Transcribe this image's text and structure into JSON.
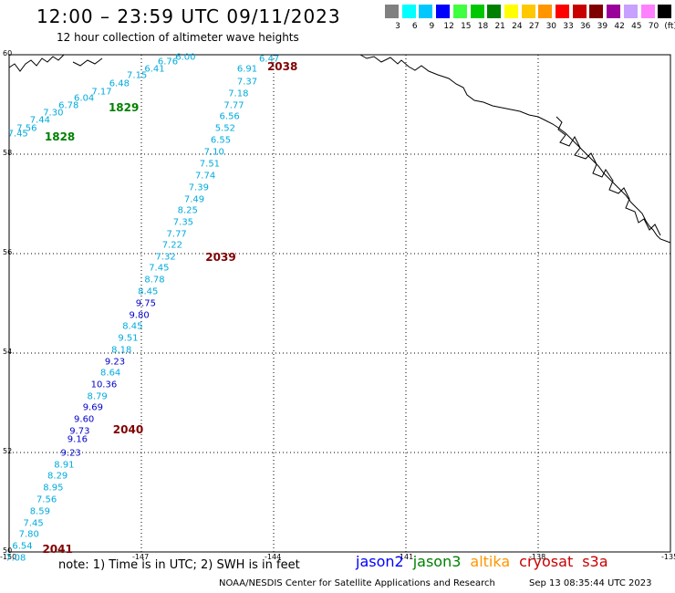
{
  "title": "12:00 – 23:59 UTC 09/11/2023",
  "subtitle": "12 hour collection of altimeter wave heights",
  "colorbar": {
    "colors": [
      "#808080",
      "#00ffff",
      "#00c8ff",
      "#0000ff",
      "#40ff40",
      "#00c800",
      "#008000",
      "#ffff00",
      "#ffc800",
      "#ff9600",
      "#ff0000",
      "#c80000",
      "#800000",
      "#9a009a",
      "#c8a0ff",
      "#ff80ff",
      "#000000"
    ],
    "labels": [
      "3",
      "6",
      "9",
      "12",
      "15",
      "18",
      "21",
      "24",
      "27",
      "30",
      "33",
      "36",
      "39",
      "42",
      "45",
      "70",
      "(ft)"
    ]
  },
  "map": {
    "lat_labels": [
      "60",
      "58",
      "56",
      "54",
      "52",
      "50"
    ],
    "lon_labels": [
      "-150",
      "-147",
      "-144",
      "-141",
      "-138",
      "-135"
    ],
    "lat_range": [
      50,
      60
    ],
    "lon_range": [
      -150,
      -135
    ]
  },
  "track_east": {
    "color": "#00aadd",
    "values": [
      {
        "lat": 59.91,
        "lon": -144.1,
        "v": "6.47"
      },
      {
        "lat": 59.7,
        "lon": -144.6,
        "v": "6.91"
      },
      {
        "lat": 59.45,
        "lon": -144.6,
        "v": "7.37"
      },
      {
        "lat": 59.22,
        "lon": -144.8,
        "v": "7.18"
      },
      {
        "lat": 58.98,
        "lon": -144.9,
        "v": "7.77"
      },
      {
        "lat": 58.75,
        "lon": -145.0,
        "v": "6.56"
      },
      {
        "lat": 58.52,
        "lon": -145.1,
        "v": "5.52"
      },
      {
        "lat": 58.28,
        "lon": -145.2,
        "v": "6.55"
      },
      {
        "lat": 58.04,
        "lon": -145.35,
        "v": "7.10"
      },
      {
        "lat": 57.8,
        "lon": -145.45,
        "v": "7.51"
      },
      {
        "lat": 57.56,
        "lon": -145.55,
        "v": "7.74"
      },
      {
        "lat": 57.33,
        "lon": -145.7,
        "v": "7.39"
      },
      {
        "lat": 57.09,
        "lon": -145.8,
        "v": "7.49"
      },
      {
        "lat": 56.86,
        "lon": -145.95,
        "v": "8.25"
      },
      {
        "lat": 56.62,
        "lon": -146.05,
        "v": "7.35"
      },
      {
        "lat": 56.39,
        "lon": -146.2,
        "v": "7.77"
      },
      {
        "lat": 56.16,
        "lon": -146.3,
        "v": "7.22"
      },
      {
        "lat": 55.93,
        "lon": -146.45,
        "v": "7.32"
      },
      {
        "lat": 55.7,
        "lon": -146.6,
        "v": "7.45"
      },
      {
        "lat": 55.47,
        "lon": -146.7,
        "v": "8.78"
      },
      {
        "lat": 55.23,
        "lon": -146.85,
        "v": "8.45"
      },
      {
        "lat": 55.0,
        "lon": -146.9,
        "v": "9.75",
        "c": "#0000cc"
      },
      {
        "lat": 54.76,
        "lon": -147.05,
        "v": "9.80",
        "c": "#0000cc"
      },
      {
        "lat": 54.53,
        "lon": -147.2,
        "v": "8.45"
      },
      {
        "lat": 54.29,
        "lon": -147.3,
        "v": "9.51"
      },
      {
        "lat": 54.06,
        "lon": -147.45,
        "v": "8.18"
      },
      {
        "lat": 53.82,
        "lon": -147.6,
        "v": "9.23",
        "c": "#0000cc"
      },
      {
        "lat": 53.59,
        "lon": -147.7,
        "v": "8.64"
      },
      {
        "lat": 53.36,
        "lon": -147.85,
        "v": "10.36",
        "c": "#0000cc"
      },
      {
        "lat": 53.12,
        "lon": -148.0,
        "v": "8.79"
      },
      {
        "lat": 52.89,
        "lon": -148.1,
        "v": "9.69",
        "c": "#0000cc"
      },
      {
        "lat": 52.66,
        "lon": -148.3,
        "v": "9.60",
        "c": "#0000cc"
      },
      {
        "lat": 52.42,
        "lon": -148.4,
        "v": "9.73",
        "c": "#0000cc"
      },
      {
        "lat": 52.26,
        "lon": -148.45,
        "v": "9.16",
        "c": "#0000cc"
      },
      {
        "lat": 51.99,
        "lon": -148.6,
        "v": "9.23",
        "c": "#0000cc"
      },
      {
        "lat": 51.75,
        "lon": -148.75,
        "v": "8.91"
      },
      {
        "lat": 51.52,
        "lon": -148.9,
        "v": "8.29"
      },
      {
        "lat": 51.28,
        "lon": -149.0,
        "v": "8.95"
      },
      {
        "lat": 51.04,
        "lon": -149.15,
        "v": "7.56"
      },
      {
        "lat": 50.81,
        "lon": -149.3,
        "v": "8.59"
      },
      {
        "lat": 50.57,
        "lon": -149.45,
        "v": "7.45"
      },
      {
        "lat": 50.34,
        "lon": -149.55,
        "v": "7.80"
      },
      {
        "lat": 50.11,
        "lon": -149.7,
        "v": "6.54"
      },
      {
        "lat": 49.88,
        "lon": -149.85,
        "v": "7.08"
      }
    ]
  },
  "track_west": {
    "color": "#00aadd",
    "values": [
      {
        "lat": 59.95,
        "lon": -146.0,
        "v": "6.00"
      },
      {
        "lat": 59.85,
        "lon": -146.4,
        "v": "6.76"
      },
      {
        "lat": 59.7,
        "lon": -146.7,
        "v": "6.41"
      },
      {
        "lat": 59.58,
        "lon": -147.1,
        "v": "7.15"
      },
      {
        "lat": 59.42,
        "lon": -147.5,
        "v": "6.48"
      },
      {
        "lat": 59.25,
        "lon": -147.9,
        "v": "7.17"
      },
      {
        "lat": 59.12,
        "lon": -148.3,
        "v": "6.04"
      },
      {
        "lat": 58.98,
        "lon": -148.65,
        "v": "6.78"
      },
      {
        "lat": 58.82,
        "lon": -149.0,
        "v": "7.30"
      },
      {
        "lat": 58.68,
        "lon": -149.3,
        "v": "7.44"
      },
      {
        "lat": 58.52,
        "lon": -149.6,
        "v": "7.56"
      },
      {
        "lat": 58.4,
        "lon": -149.8,
        "v": "7.45"
      }
    ]
  },
  "pass_labels": [
    {
      "lat": 59.77,
      "lon": -143.8,
      "t": "2038",
      "c": "#800000"
    },
    {
      "lat": 58.93,
      "lon": -147.4,
      "t": "1829",
      "c": "#008000"
    },
    {
      "lat": 58.35,
      "lon": -148.85,
      "t": "1828",
      "c": "#008000"
    },
    {
      "lat": 55.93,
      "lon": -145.2,
      "t": "2039",
      "c": "#800000"
    },
    {
      "lat": 52.46,
      "lon": -147.3,
      "t": "2040",
      "c": "#800000"
    },
    {
      "lat": 50.05,
      "lon": -148.9,
      "t": "2041",
      "c": "#800000"
    }
  ],
  "note": "note:  1) Time is in UTC;  2) SWH is in feet",
  "legend": [
    {
      "name": "jason2",
      "color": "#0000ff"
    },
    {
      "name": "jason3",
      "color": "#008000"
    },
    {
      "name": "altika",
      "color": "#ff9600"
    },
    {
      "name": "cryosat",
      "color": "#c80000"
    },
    {
      "name": "s3a",
      "color": "#c80000"
    }
  ],
  "footer": "NOAA/NESDIS Center for Satellite Applications and Research",
  "timestamp": "Sep 13 08:35:44 UTC 2023"
}
